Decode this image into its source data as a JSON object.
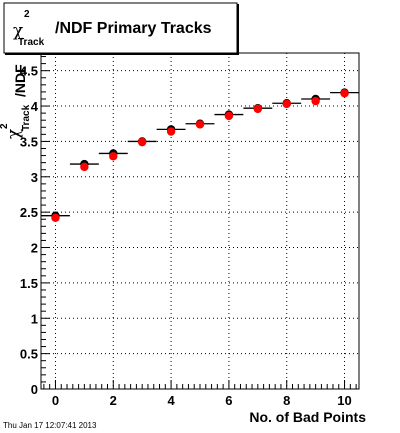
{
  "title": {
    "symbol": "χ",
    "superscript": "2",
    "subscript": "Track",
    "suffix": "/NDF Primary Tracks"
  },
  "y_axis_title": {
    "symbol": "χ",
    "superscript": "2",
    "subscript": "Track",
    "suffix": "/NDF"
  },
  "timestamp": "Thu Jan 17 12:07:41 2013",
  "colors": {
    "marker": "#ff0000",
    "axis": "#000000",
    "grid": "#000000"
  },
  "chart_data": {
    "type": "scatter",
    "title": "χ²_Track/NDF Primary Tracks",
    "xlabel": "No. of Bad Points",
    "ylabel": "χ²_Track/NDF",
    "xlim": [
      -0.5,
      10.5
    ],
    "ylim": [
      0,
      4.75
    ],
    "grid": true,
    "x_ticks": [
      0,
      2,
      4,
      6,
      8,
      10
    ],
    "y_ticks": [
      0,
      0.5,
      1,
      1.5,
      2,
      2.5,
      3,
      3.5,
      4,
      4.5
    ],
    "y_tick_labels": [
      "0",
      "0.5",
      "1",
      "1.5",
      "2",
      "2.5",
      "3",
      "3.5",
      "4",
      "4.5"
    ],
    "x_tick_labels": [
      "0",
      "2",
      "4",
      "6",
      "8",
      "10"
    ],
    "series": [
      {
        "marker": "black-circle",
        "x": [
          0,
          1,
          2,
          3,
          4,
          5,
          6,
          7,
          8,
          9,
          10
        ],
        "y": [
          2.45,
          3.18,
          3.33,
          3.5,
          3.67,
          3.75,
          3.88,
          3.97,
          4.04,
          4.1,
          4.19
        ],
        "x_err": [
          0.5,
          0.5,
          0.5,
          0.5,
          0.5,
          0.5,
          0.5,
          0.5,
          0.5,
          0.5,
          0.5
        ],
        "y_err": [
          0.04,
          0.04,
          0.04,
          0.03,
          0.04,
          0.04,
          0.04,
          0.03,
          0.02,
          0.03,
          0.02
        ]
      },
      {
        "marker": "red-circle",
        "x": [
          0,
          1,
          2,
          3,
          4,
          5,
          6,
          7,
          8,
          9,
          10
        ],
        "y": [
          2.42,
          3.14,
          3.29,
          3.49,
          3.64,
          3.74,
          3.86,
          3.96,
          4.03,
          4.07,
          4.18
        ]
      }
    ]
  }
}
